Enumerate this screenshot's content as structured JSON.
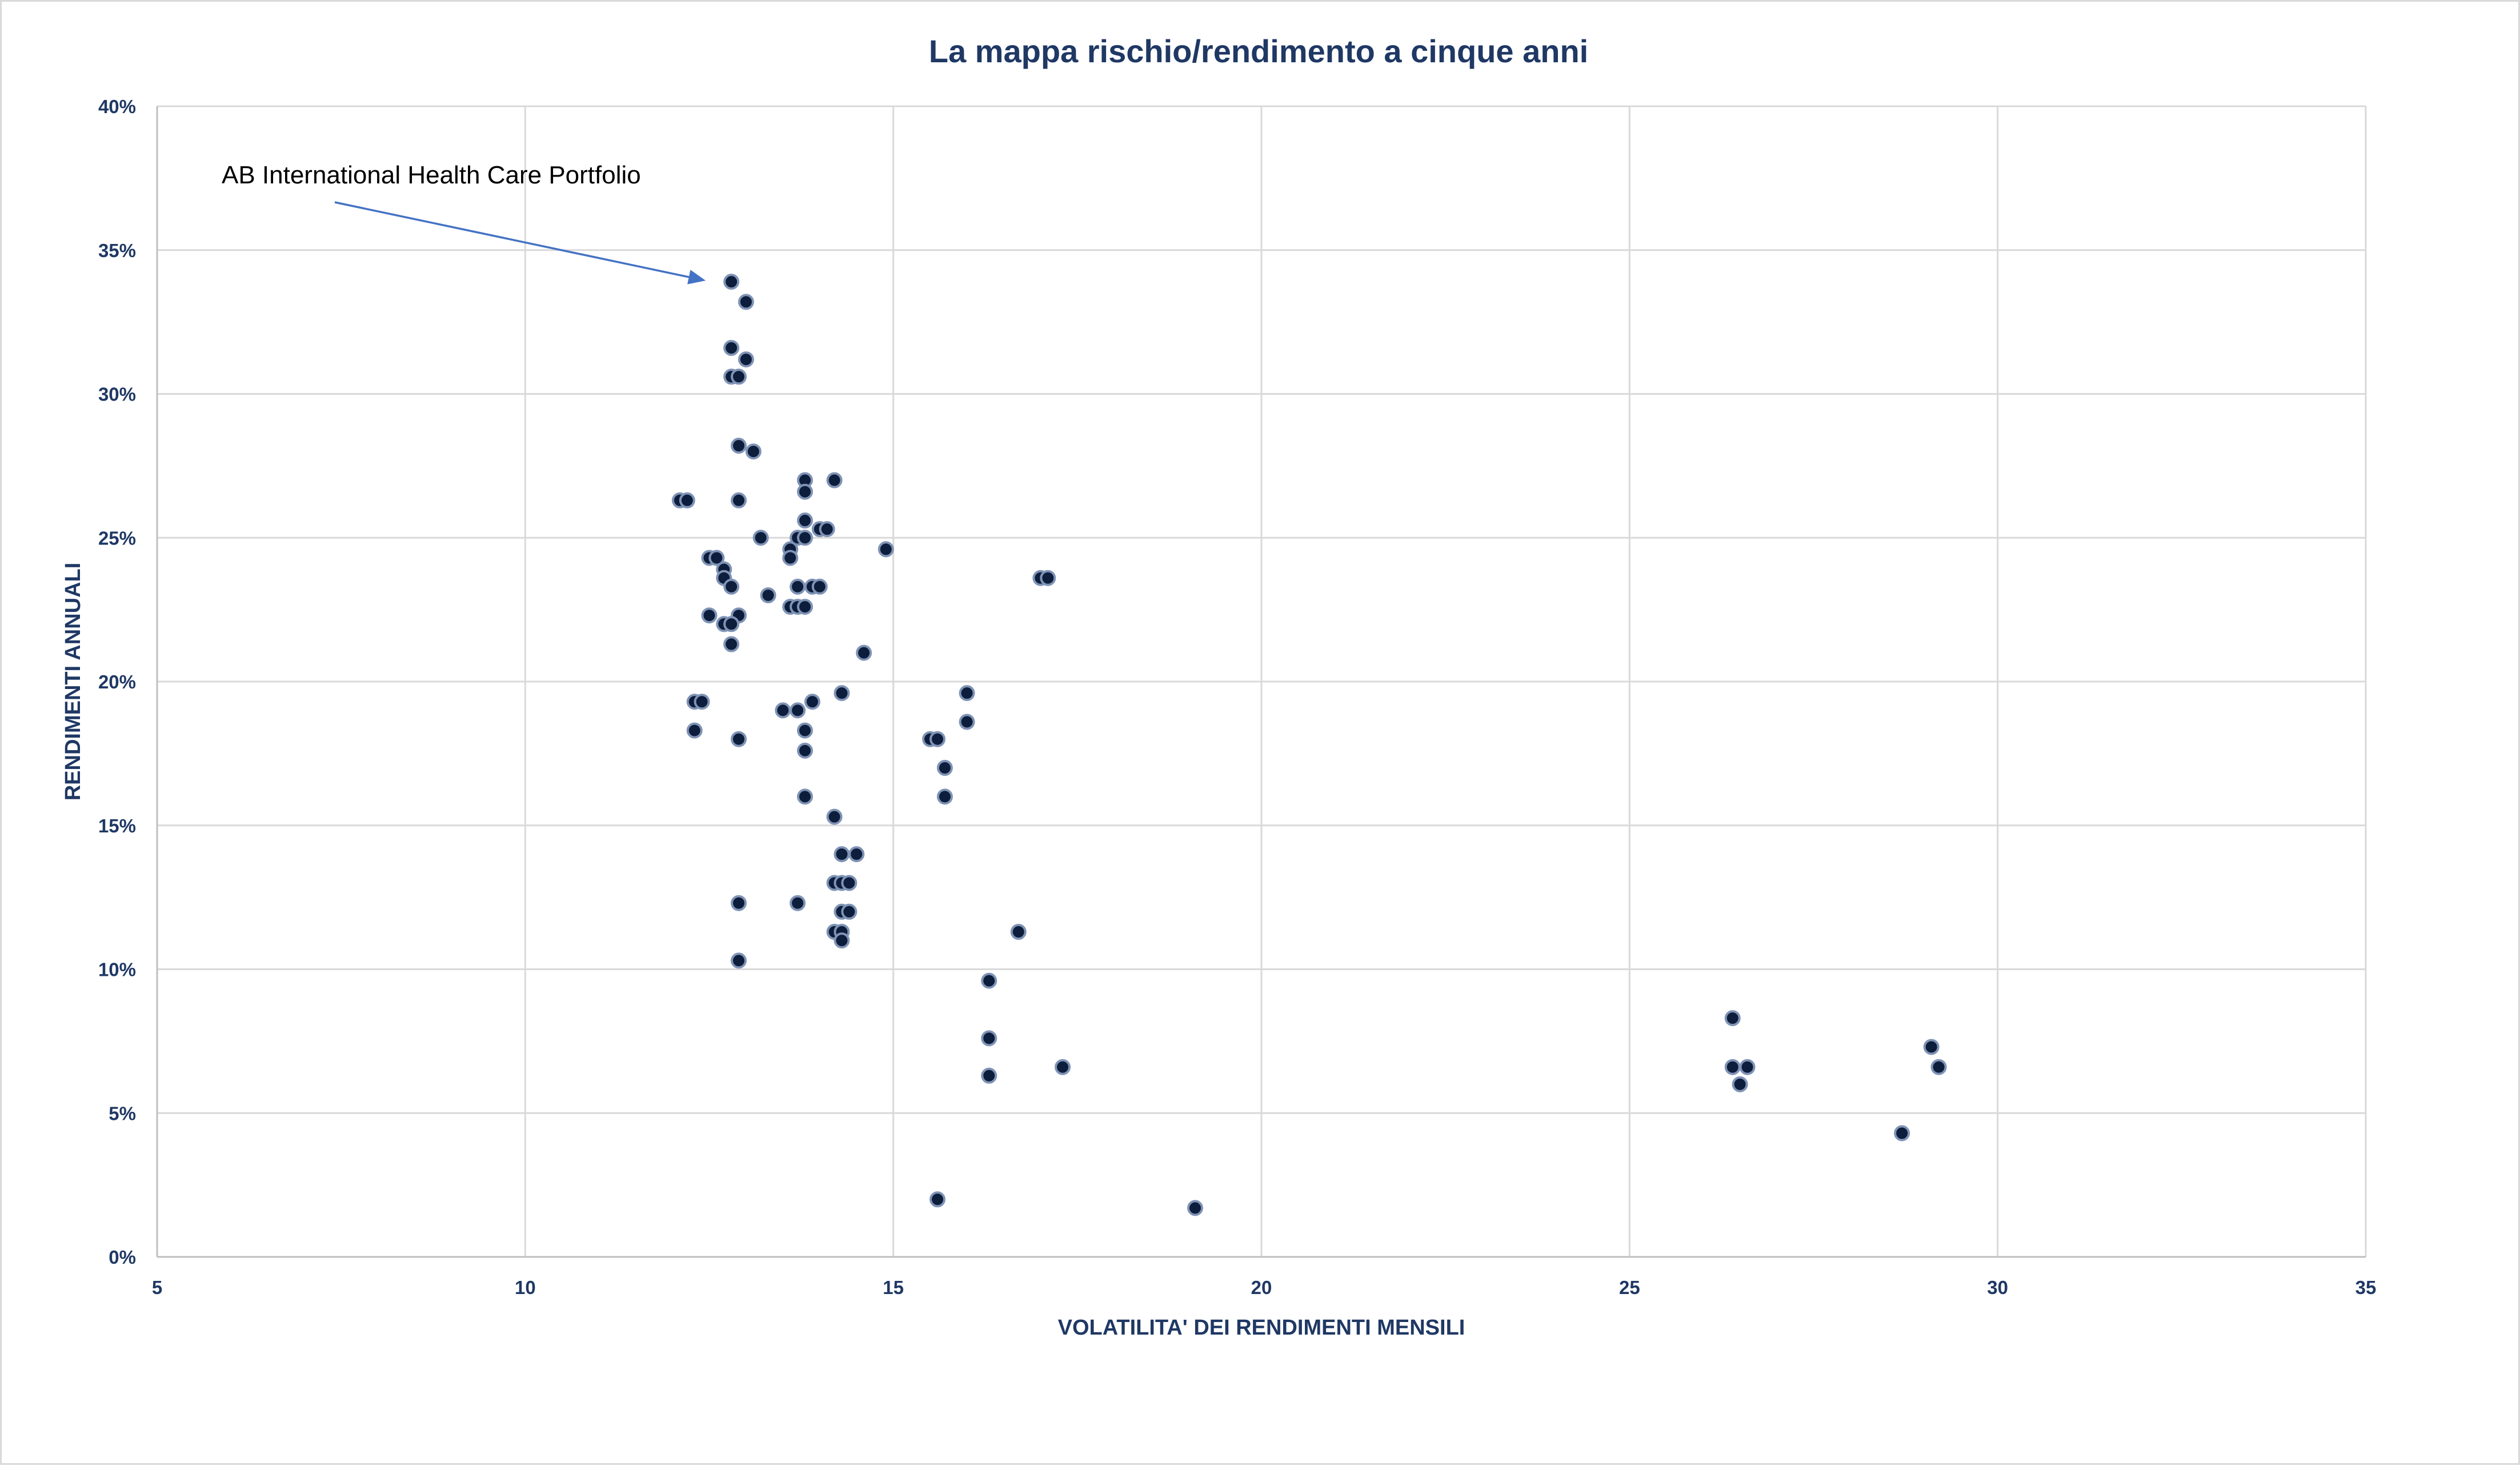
{
  "chart_data": {
    "type": "scatter",
    "title": "La mappa rischio/rendimento a cinque anni",
    "xlabel": "VOLATILITA' DEI RENDIMENTI MENSILI",
    "ylabel": "RENDIMENTI ANNUALI",
    "xlim": [
      5,
      35
    ],
    "ylim": [
      0,
      40
    ],
    "x_ticks": [
      "5",
      "10",
      "15",
      "20",
      "25",
      "30",
      "35"
    ],
    "y_ticks": [
      "0%",
      "5%",
      "10%",
      "15%",
      "20%",
      "25%",
      "30%",
      "35%",
      "40%"
    ],
    "grid": true,
    "legend": "none",
    "point_color": "#0d1d3c",
    "annotation": {
      "text": "AB International Health Care Portfolio",
      "target": [
        12.8,
        33.9
      ]
    },
    "points": [
      [
        12.8,
        33.9
      ],
      [
        13.0,
        33.2
      ],
      [
        12.8,
        31.6
      ],
      [
        13.0,
        31.2
      ],
      [
        12.8,
        30.6
      ],
      [
        12.9,
        30.6
      ],
      [
        12.9,
        28.2
      ],
      [
        13.1,
        28.0
      ],
      [
        12.1,
        26.3
      ],
      [
        12.2,
        26.3
      ],
      [
        12.9,
        26.3
      ],
      [
        13.8,
        27.0
      ],
      [
        13.8,
        26.6
      ],
      [
        14.2,
        27.0
      ],
      [
        13.2,
        25.0
      ],
      [
        13.8,
        25.6
      ],
      [
        14.0,
        25.3
      ],
      [
        14.1,
        25.3
      ],
      [
        13.7,
        25.0
      ],
      [
        13.8,
        25.0
      ],
      [
        13.6,
        24.6
      ],
      [
        13.6,
        24.3
      ],
      [
        14.9,
        24.6
      ],
      [
        12.5,
        24.3
      ],
      [
        12.6,
        24.3
      ],
      [
        12.7,
        23.9
      ],
      [
        12.7,
        23.6
      ],
      [
        12.8,
        23.3
      ],
      [
        13.3,
        23.0
      ],
      [
        13.7,
        23.3
      ],
      [
        13.9,
        23.3
      ],
      [
        14.0,
        23.3
      ],
      [
        13.6,
        22.6
      ],
      [
        13.7,
        22.6
      ],
      [
        13.8,
        22.6
      ],
      [
        12.5,
        22.3
      ],
      [
        12.9,
        22.3
      ],
      [
        12.7,
        22.0
      ],
      [
        12.8,
        22.0
      ],
      [
        12.8,
        21.3
      ],
      [
        14.6,
        21.0
      ],
      [
        17.0,
        23.6
      ],
      [
        17.1,
        23.6
      ],
      [
        12.3,
        19.3
      ],
      [
        12.4,
        19.3
      ],
      [
        13.5,
        19.0
      ],
      [
        13.7,
        19.0
      ],
      [
        13.9,
        19.3
      ],
      [
        14.3,
        19.6
      ],
      [
        12.3,
        18.3
      ],
      [
        12.9,
        18.0
      ],
      [
        13.8,
        18.3
      ],
      [
        13.8,
        17.6
      ],
      [
        15.5,
        18.0
      ],
      [
        15.6,
        18.0
      ],
      [
        16.0,
        19.6
      ],
      [
        16.0,
        18.6
      ],
      [
        15.7,
        17.0
      ],
      [
        15.7,
        16.0
      ],
      [
        13.8,
        16.0
      ],
      [
        14.2,
        15.3
      ],
      [
        14.3,
        14.0
      ],
      [
        14.5,
        14.0
      ],
      [
        14.2,
        13.0
      ],
      [
        14.3,
        13.0
      ],
      [
        14.4,
        13.0
      ],
      [
        12.9,
        12.3
      ],
      [
        13.7,
        12.3
      ],
      [
        14.3,
        12.0
      ],
      [
        14.4,
        12.0
      ],
      [
        14.2,
        11.3
      ],
      [
        14.3,
        11.3
      ],
      [
        14.3,
        11.0
      ],
      [
        16.7,
        11.3
      ],
      [
        12.9,
        10.3
      ],
      [
        16.3,
        9.6
      ],
      [
        16.3,
        7.6
      ],
      [
        16.3,
        6.3
      ],
      [
        17.3,
        6.6
      ],
      [
        15.6,
        2.0
      ],
      [
        19.1,
        1.7
      ],
      [
        26.4,
        8.3
      ],
      [
        26.4,
        6.6
      ],
      [
        26.6,
        6.6
      ],
      [
        26.5,
        6.0
      ],
      [
        29.1,
        7.3
      ],
      [
        29.2,
        6.6
      ],
      [
        28.7,
        4.3
      ]
    ]
  }
}
